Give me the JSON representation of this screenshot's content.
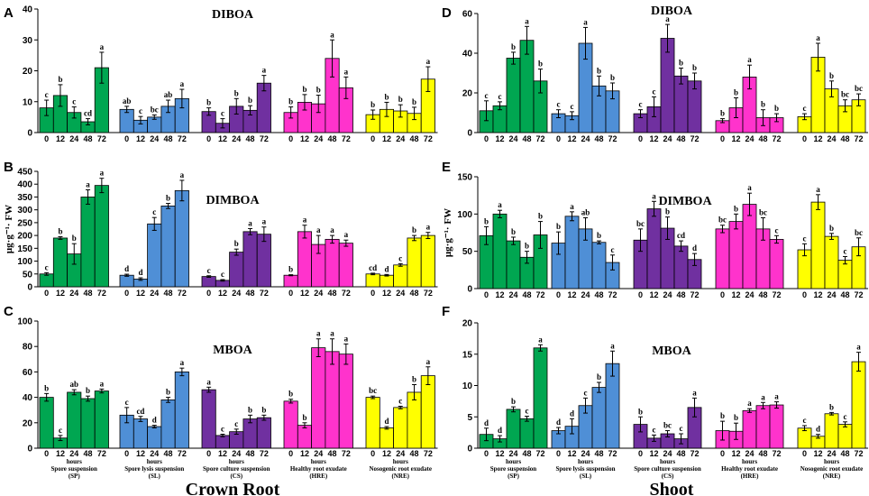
{
  "figure": {
    "left_column_title": "Crown Root",
    "right_column_title": "Shoot",
    "hours_label": "hours"
  },
  "groups": [
    {
      "name": "Spore suspension",
      "abbr": "(SP)",
      "color": "#00a651"
    },
    {
      "name": "Spore lysis suspension",
      "abbr": "(SL)",
      "color": "#4f8fd6"
    },
    {
      "name": "Spore culture suspension",
      "abbr": "(CS)",
      "color": "#7030a0"
    },
    {
      "name": "Healthy root exudate",
      "abbr": "(HRE)",
      "color": "#ff33cc"
    },
    {
      "name": "Nosogenic root exudate",
      "abbr": "(NRE)",
      "color": "#ffff00"
    }
  ],
  "chart_data": [
    {
      "type": "bar",
      "panel": "A",
      "title": "DIBOA",
      "ylim": [
        0,
        40
      ],
      "yticks": [
        0,
        10,
        20,
        30,
        40
      ],
      "categories": [
        "0",
        "12",
        "24",
        "48",
        "72"
      ],
      "series": [
        {
          "group_index": 0,
          "values": [
            8,
            12,
            6.5,
            3.5,
            21
          ],
          "errors": [
            2.5,
            3.5,
            1.8,
            1,
            5
          ],
          "letters": [
            "c",
            "b",
            "c",
            "cd",
            "a"
          ]
        },
        {
          "group_index": 1,
          "values": [
            7.5,
            4,
            5,
            8.5,
            11
          ],
          "errors": [
            1,
            1.2,
            0.7,
            2,
            3
          ],
          "letters": [
            "ab",
            "c",
            "bc",
            "ab",
            "a"
          ]
        },
        {
          "group_index": 2,
          "values": [
            6.8,
            3,
            8.5,
            7.2,
            16
          ],
          "errors": [
            1.2,
            1.5,
            2.5,
            1.5,
            2.5
          ],
          "letters": [
            "b",
            "c",
            "b",
            "b",
            "a"
          ]
        },
        {
          "group_index": 3,
          "values": [
            6.5,
            9.8,
            9.3,
            24,
            14.5
          ],
          "errors": [
            1.8,
            2.5,
            2.8,
            6,
            3.5
          ],
          "letters": [
            "b",
            "b",
            "b",
            "a",
            "a"
          ]
        },
        {
          "group_index": 4,
          "values": [
            5.8,
            7.5,
            7,
            6.2,
            17.3
          ],
          "errors": [
            1.5,
            2.3,
            2,
            2,
            4
          ],
          "letters": [
            "b",
            "b",
            "b",
            "b",
            "a"
          ]
        }
      ]
    },
    {
      "type": "bar",
      "panel": "B",
      "title": "DIMBOA",
      "ylabel": "μg·g⁻¹· FW",
      "ylim": [
        0,
        450
      ],
      "yticks": [
        0,
        50,
        100,
        150,
        200,
        250,
        300,
        350,
        400,
        450
      ],
      "categories": [
        "0",
        "12",
        "24",
        "48",
        "72"
      ],
      "series": [
        {
          "group_index": 0,
          "values": [
            50,
            190,
            128,
            350,
            395
          ],
          "errors": [
            5,
            5,
            40,
            28,
            28
          ],
          "letters": [
            "c",
            "b",
            "b",
            "a",
            "a"
          ]
        },
        {
          "group_index": 1,
          "values": [
            45,
            30,
            245,
            315,
            375
          ],
          "errors": [
            4,
            5,
            25,
            10,
            40
          ],
          "letters": [
            "d",
            "d",
            "c",
            "b",
            "a"
          ]
        },
        {
          "group_index": 2,
          "values": [
            40,
            25,
            135,
            215,
            205
          ],
          "errors": [
            3,
            3,
            12,
            12,
            28
          ],
          "letters": [
            "c",
            "c",
            "b",
            "a",
            "a"
          ]
        },
        {
          "group_index": 3,
          "values": [
            45,
            215,
            165,
            185,
            170
          ],
          "errors": [
            2,
            25,
            35,
            15,
            12
          ],
          "letters": [
            "b",
            "a",
            "a",
            "a",
            "a"
          ]
        },
        {
          "group_index": 4,
          "values": [
            50,
            45,
            85,
            190,
            200
          ],
          "errors": [
            3,
            3,
            5,
            10,
            12
          ],
          "letters": [
            "cd",
            "d",
            "c",
            "b",
            "a"
          ]
        }
      ]
    },
    {
      "type": "bar",
      "panel": "C",
      "title": "MBOA",
      "ylim": [
        0,
        100
      ],
      "yticks": [
        0,
        20,
        40,
        60,
        80,
        100
      ],
      "categories": [
        "0",
        "12",
        "24",
        "48",
        "72"
      ],
      "series": [
        {
          "group_index": 0,
          "values": [
            40,
            8,
            44,
            39,
            45
          ],
          "errors": [
            3,
            2,
            2,
            2,
            1.5
          ],
          "letters": [
            "b",
            "c",
            "ab",
            "b",
            "a"
          ]
        },
        {
          "group_index": 1,
          "values": [
            26,
            23,
            17,
            38,
            60
          ],
          "errors": [
            6,
            2,
            1,
            2,
            3
          ],
          "letters": [
            "c",
            "cd",
            "d",
            "b",
            "a"
          ]
        },
        {
          "group_index": 2,
          "values": [
            46,
            10,
            13,
            23,
            24
          ],
          "errors": [
            2,
            1,
            2,
            3,
            2
          ],
          "letters": [
            "a",
            "c",
            "c",
            "b",
            "b"
          ]
        },
        {
          "group_index": 3,
          "values": [
            37,
            18,
            79,
            76,
            74
          ],
          "errors": [
            1.5,
            2,
            7,
            10,
            8
          ],
          "letters": [
            "b",
            "b",
            "a",
            "a",
            "a"
          ]
        },
        {
          "group_index": 4,
          "values": [
            40,
            16,
            32,
            44,
            57
          ],
          "errors": [
            1,
            1,
            1,
            6,
            7
          ],
          "letters": [
            "bc",
            "d",
            "c",
            "b",
            "a"
          ]
        }
      ]
    },
    {
      "type": "bar",
      "panel": "D",
      "title": "DIBOA",
      "ylim": [
        0,
        60
      ],
      "yticks": [
        0,
        20,
        40,
        60
      ],
      "categories": [
        "0",
        "12",
        "24",
        "48",
        "72"
      ],
      "series": [
        {
          "group_index": 0,
          "values": [
            11,
            13.5,
            37.5,
            46.5,
            26
          ],
          "errors": [
            5,
            2,
            3,
            7,
            6
          ],
          "letters": [
            "c",
            "c",
            "b",
            "a",
            "b"
          ]
        },
        {
          "group_index": 1,
          "values": [
            9.5,
            8.5,
            45,
            23.5,
            21
          ],
          "errors": [
            2,
            2,
            8,
            5,
            4
          ],
          "letters": [
            "c",
            "c",
            "a",
            "b",
            "b"
          ]
        },
        {
          "group_index": 2,
          "values": [
            9.5,
            13,
            47.5,
            28.5,
            26
          ],
          "errors": [
            2,
            5,
            7,
            4,
            4
          ],
          "letters": [
            "c",
            "c",
            "a",
            "b",
            "b"
          ]
        },
        {
          "group_index": 3,
          "values": [
            6,
            12.5,
            28,
            7.5,
            7.5
          ],
          "errors": [
            1,
            5,
            6,
            4,
            2
          ],
          "letters": [
            "b",
            "b",
            "a",
            "b",
            "b"
          ]
        },
        {
          "group_index": 4,
          "values": [
            8,
            38,
            22,
            13.5,
            16.5
          ],
          "errors": [
            1.5,
            7,
            4,
            3,
            3
          ],
          "letters": [
            "c",
            "a",
            "b",
            "bc",
            "bc"
          ]
        }
      ]
    },
    {
      "type": "bar",
      "panel": "E",
      "title": "DIMBOA",
      "ylabel": "μg·g⁻¹· FW",
      "ylim": [
        0,
        150
      ],
      "yticks": [
        0,
        50,
        100,
        150
      ],
      "categories": [
        "0",
        "12",
        "24",
        "48",
        "72"
      ],
      "series": [
        {
          "group_index": 0,
          "values": [
            71,
            100,
            64,
            42,
            72
          ],
          "errors": [
            12,
            5,
            5,
            8,
            18
          ],
          "letters": [
            "b",
            "a",
            "b",
            "b",
            "b"
          ]
        },
        {
          "group_index": 1,
          "values": [
            61,
            97,
            80,
            62,
            35
          ],
          "errors": [
            15,
            6,
            15,
            2,
            10
          ],
          "letters": [
            "b",
            "a",
            "ab",
            "b",
            "c"
          ]
        },
        {
          "group_index": 2,
          "values": [
            65,
            107,
            81,
            57,
            39
          ],
          "errors": [
            15,
            10,
            15,
            7,
            8
          ],
          "letters": [
            "bc",
            "a",
            "b",
            "cd",
            "d"
          ]
        },
        {
          "group_index": 3,
          "values": [
            80,
            90,
            113,
            80,
            66
          ],
          "errors": [
            5,
            10,
            15,
            15,
            5
          ],
          "letters": [
            "bc",
            "b",
            "a",
            "bc",
            "c"
          ]
        },
        {
          "group_index": 4,
          "values": [
            52,
            116,
            70,
            38,
            56
          ],
          "errors": [
            8,
            10,
            4,
            5,
            12
          ],
          "letters": [
            "c",
            "a",
            "b",
            "c",
            "bc"
          ]
        }
      ]
    },
    {
      "type": "bar",
      "panel": "F",
      "title": "MBOA",
      "ylim": [
        0,
        20
      ],
      "yticks": [
        0,
        5,
        10,
        15,
        20
      ],
      "categories": [
        "0",
        "12",
        "24",
        "48",
        "72"
      ],
      "series": [
        {
          "group_index": 0,
          "values": [
            2.2,
            1.5,
            6.2,
            4.7,
            16
          ],
          "errors": [
            1,
            0.5,
            0.4,
            0.4,
            0.5
          ],
          "letters": [
            "d",
            "d",
            "b",
            "c",
            "a"
          ]
        },
        {
          "group_index": 1,
          "values": [
            2.8,
            3.5,
            6.8,
            9.7,
            13.5
          ],
          "errors": [
            0.5,
            1.2,
            1.2,
            0.8,
            2
          ],
          "letters": [
            "d",
            "d",
            "c",
            "b",
            "a"
          ]
        },
        {
          "group_index": 2,
          "values": [
            3.8,
            1.6,
            2.3,
            1.5,
            6.5
          ],
          "errors": [
            1.2,
            0.5,
            0.5,
            0.8,
            1.5
          ],
          "letters": [
            "b",
            "c",
            "bc",
            "c",
            "a"
          ]
        },
        {
          "group_index": 3,
          "values": [
            2.8,
            2.7,
            6,
            6.8,
            6.9
          ],
          "errors": [
            1.5,
            1.3,
            0.3,
            0.5,
            0.5
          ],
          "letters": [
            "b",
            "b",
            "a",
            "a",
            "a"
          ]
        },
        {
          "group_index": 4,
          "values": [
            3.2,
            1.9,
            5.5,
            3.8,
            13.8
          ],
          "errors": [
            0.4,
            0.3,
            0.2,
            0.4,
            1.5
          ],
          "letters": [
            "c",
            "d",
            "b",
            "c",
            "a"
          ]
        }
      ]
    }
  ]
}
